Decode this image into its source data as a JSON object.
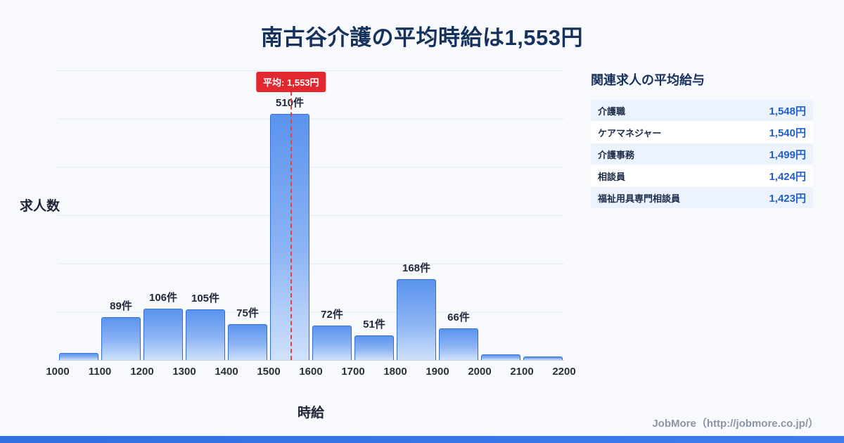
{
  "title": "南古谷介護の平均時給は1,553円",
  "chart_data": {
    "type": "bar",
    "title": "南古谷介護の平均時給は1,553円",
    "xlabel": "時給",
    "ylabel": "求人数",
    "bin_edges": [
      1000,
      1100,
      1200,
      1300,
      1400,
      1500,
      1600,
      1700,
      1800,
      1900,
      2000,
      2100,
      2200
    ],
    "values": [
      15,
      89,
      106,
      105,
      75,
      510,
      72,
      51,
      168,
      66,
      12,
      8
    ],
    "bar_labels": [
      "",
      "89件",
      "106件",
      "105件",
      "75件",
      "510件",
      "72件",
      "51件",
      "168件",
      "66件",
      "",
      ""
    ],
    "unit": "件",
    "average": 1553,
    "average_label": "平均: 1,553円",
    "x_range": [
      1000,
      2200
    ],
    "ylim": [
      0,
      560
    ],
    "grid": "horizontal",
    "legend": "none"
  },
  "side_panel": {
    "title": "関連求人の平均給与",
    "rows": [
      {
        "label": "介護職",
        "value": "1,548円"
      },
      {
        "label": "ケアマネジャー",
        "value": "1,540円"
      },
      {
        "label": "介護事務",
        "value": "1,499円"
      },
      {
        "label": "相談員",
        "value": "1,424円"
      },
      {
        "label": "福祉用具専門相談員",
        "value": "1,423円"
      }
    ]
  },
  "footer": {
    "credit": "JobMore（http://jobmore.co.jp/）"
  },
  "colors": {
    "background": "#f7f9fd",
    "title_navy": "#16325c",
    "bar_fill_top": "#5b93ee",
    "bar_fill_bottom": "#cfe1fb",
    "bar_border": "#3170d2",
    "average_red": "#e0282e",
    "value_blue": "#1f5fd0",
    "footer_strip_blue": "#2f6fe0"
  }
}
